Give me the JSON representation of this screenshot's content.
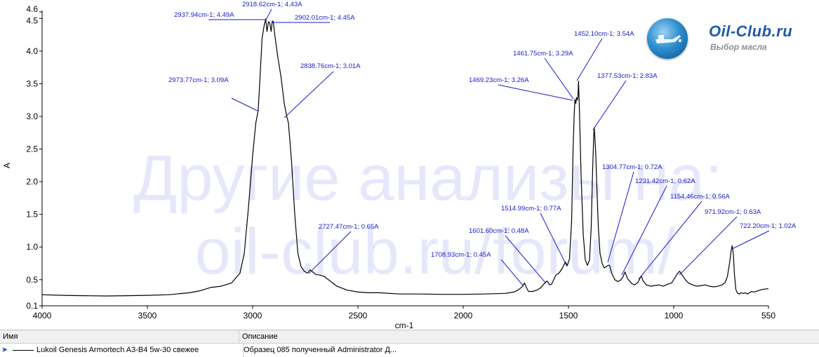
{
  "watermark": {
    "line1": "Другие анализы на:",
    "line2": "oil-club.ru/forum/"
  },
  "logo": {
    "name": "Oil-Club.ru",
    "subtitle": "Выбор масла",
    "icon": "oil-can-icon"
  },
  "legend_table": {
    "headers": {
      "name": "Имя",
      "description": "Описание"
    },
    "rows": [
      {
        "name": "Lukoil Genesis Armortech A3-B4 5w-30 свежее",
        "description": "Образец 085 полученный Administrator Д...",
        "icon": "selected-row-arrow-icon"
      }
    ]
  },
  "chart_data": {
    "type": "line",
    "xlabel": "cm-1",
    "ylabel": "A",
    "xlim": [
      4000,
      550
    ],
    "ylim": [
      0.1,
      4.6
    ],
    "x_reversed": true,
    "grid": false,
    "x_ticks": [
      {
        "value": 4000,
        "label": "4000"
      },
      {
        "value": 3500,
        "label": "3500"
      },
      {
        "value": 3000,
        "label": "3000"
      },
      {
        "value": 2500,
        "label": "2500"
      },
      {
        "value": 2000,
        "label": "2000"
      },
      {
        "value": 1500,
        "label": "1500"
      },
      {
        "value": 1000,
        "label": "1000"
      },
      {
        "value": 550,
        "label": "550"
      }
    ],
    "y_ticks": [
      {
        "value": 0.1,
        "label": "0.1"
      },
      {
        "value": 0.5,
        "label": "0.5"
      },
      {
        "value": 1.0,
        "label": "1.0"
      },
      {
        "value": 1.5,
        "label": "1.5"
      },
      {
        "value": 2.0,
        "label": "2.0"
      },
      {
        "value": 2.5,
        "label": "2.5"
      },
      {
        "value": 3.0,
        "label": "3.0"
      },
      {
        "value": 3.5,
        "label": "3.5"
      },
      {
        "value": 4.0,
        "label": "4.0"
      },
      {
        "value": 4.5,
        "label": "4.5"
      },
      {
        "value": 4.6,
        "label": "4.6"
      }
    ],
    "series": [
      {
        "color": "#000000",
        "points": [
          [
            4000,
            0.27
          ],
          [
            3900,
            0.26
          ],
          [
            3800,
            0.255
          ],
          [
            3700,
            0.25
          ],
          [
            3600,
            0.255
          ],
          [
            3500,
            0.26
          ],
          [
            3400,
            0.27
          ],
          [
            3300,
            0.3
          ],
          [
            3250,
            0.33
          ],
          [
            3200,
            0.38
          ],
          [
            3150,
            0.4
          ],
          [
            3100,
            0.45
          ],
          [
            3060,
            0.6
          ],
          [
            3040,
            0.9
          ],
          [
            3020,
            1.6
          ],
          [
            3000,
            2.4
          ],
          [
            2985,
            2.9
          ],
          [
            2973.77,
            3.09
          ],
          [
            2965,
            3.6
          ],
          [
            2955,
            4.2
          ],
          [
            2945,
            4.4
          ],
          [
            2937.94,
            4.49
          ],
          [
            2932,
            4.3
          ],
          [
            2925,
            4.45
          ],
          [
            2918.62,
            4.43
          ],
          [
            2912,
            4.3
          ],
          [
            2907,
            4.46
          ],
          [
            2902.01,
            4.45
          ],
          [
            2895,
            4.25
          ],
          [
            2880,
            3.9
          ],
          [
            2865,
            3.6
          ],
          [
            2850,
            3.2
          ],
          [
            2838.76,
            3.01
          ],
          [
            2830,
            2.9
          ],
          [
            2815,
            2.3
          ],
          [
            2800,
            1.5
          ],
          [
            2785,
            0.9
          ],
          [
            2770,
            0.7
          ],
          [
            2755,
            0.63
          ],
          [
            2740,
            0.6
          ],
          [
            2727.47,
            0.65
          ],
          [
            2715,
            0.62
          ],
          [
            2700,
            0.58
          ],
          [
            2680,
            0.57
          ],
          [
            2660,
            0.55
          ],
          [
            2640,
            0.5
          ],
          [
            2620,
            0.45
          ],
          [
            2600,
            0.4
          ],
          [
            2550,
            0.34
          ],
          [
            2500,
            0.31
          ],
          [
            2450,
            0.3
          ],
          [
            2400,
            0.3
          ],
          [
            2300,
            0.28
          ],
          [
            2200,
            0.28
          ],
          [
            2100,
            0.275
          ],
          [
            2000,
            0.275
          ],
          [
            1900,
            0.28
          ],
          [
            1800,
            0.29
          ],
          [
            1760,
            0.31
          ],
          [
            1740,
            0.34
          ],
          [
            1720,
            0.39
          ],
          [
            1708.93,
            0.45
          ],
          [
            1700,
            0.38
          ],
          [
            1690,
            0.32
          ],
          [
            1670,
            0.32
          ],
          [
            1650,
            0.34
          ],
          [
            1630,
            0.38
          ],
          [
            1615,
            0.44
          ],
          [
            1601.6,
            0.48
          ],
          [
            1590,
            0.42
          ],
          [
            1580,
            0.43
          ],
          [
            1570,
            0.5
          ],
          [
            1560,
            0.57
          ],
          [
            1545,
            0.6
          ],
          [
            1530,
            0.67
          ],
          [
            1514.99,
            0.77
          ],
          [
            1505,
            0.72
          ],
          [
            1495,
            0.82
          ],
          [
            1485,
            1.4
          ],
          [
            1478,
            2.5
          ],
          [
            1473,
            3.0
          ],
          [
            1469.23,
            3.26
          ],
          [
            1465,
            3.2
          ],
          [
            1461.75,
            3.29
          ],
          [
            1458,
            3.25
          ],
          [
            1455,
            3.3
          ],
          [
            1452.1,
            3.54
          ],
          [
            1448,
            3.1
          ],
          [
            1440,
            2.1
          ],
          [
            1430,
            1.2
          ],
          [
            1420,
            0.8
          ],
          [
            1410,
            0.72
          ],
          [
            1400,
            0.8
          ],
          [
            1392,
            1.3
          ],
          [
            1385,
            2.2
          ],
          [
            1380,
            2.7
          ],
          [
            1377.53,
            2.83
          ],
          [
            1374,
            2.65
          ],
          [
            1370,
            2.4
          ],
          [
            1365,
            1.9
          ],
          [
            1358,
            1.3
          ],
          [
            1350,
            0.9
          ],
          [
            1340,
            0.75
          ],
          [
            1330,
            0.68
          ],
          [
            1320,
            0.7
          ],
          [
            1312,
            0.72
          ],
          [
            1304.77,
            0.72
          ],
          [
            1295,
            0.6
          ],
          [
            1280,
            0.5
          ],
          [
            1265,
            0.47
          ],
          [
            1250,
            0.5
          ],
          [
            1240,
            0.55
          ],
          [
            1231.42,
            0.62
          ],
          [
            1220,
            0.52
          ],
          [
            1200,
            0.44
          ],
          [
            1185,
            0.42
          ],
          [
            1170,
            0.46
          ],
          [
            1160,
            0.52
          ],
          [
            1154.46,
            0.56
          ],
          [
            1145,
            0.48
          ],
          [
            1130,
            0.42
          ],
          [
            1110,
            0.4
          ],
          [
            1090,
            0.41
          ],
          [
            1070,
            0.42
          ],
          [
            1050,
            0.4
          ],
          [
            1030,
            0.43
          ],
          [
            1010,
            0.45
          ],
          [
            1000,
            0.5
          ],
          [
            985,
            0.58
          ],
          [
            971.92,
            0.63
          ],
          [
            960,
            0.57
          ],
          [
            945,
            0.5
          ],
          [
            930,
            0.45
          ],
          [
            910,
            0.42
          ],
          [
            890,
            0.4
          ],
          [
            870,
            0.41
          ],
          [
            850,
            0.42
          ],
          [
            830,
            0.4
          ],
          [
            810,
            0.39
          ],
          [
            790,
            0.4
          ],
          [
            770,
            0.42
          ],
          [
            755,
            0.46
          ],
          [
            745,
            0.55
          ],
          [
            735,
            0.75
          ],
          [
            727,
            0.95
          ],
          [
            722.2,
            1.02
          ],
          [
            717,
            0.9
          ],
          [
            712,
            0.6
          ],
          [
            705,
            0.35
          ],
          [
            698,
            0.3
          ],
          [
            690,
            0.28
          ],
          [
            680,
            0.3
          ],
          [
            670,
            0.29
          ],
          [
            660,
            0.3
          ],
          [
            650,
            0.28
          ],
          [
            640,
            0.3
          ],
          [
            630,
            0.32
          ],
          [
            620,
            0.31
          ],
          [
            600,
            0.33
          ],
          [
            580,
            0.35
          ],
          [
            560,
            0.36
          ],
          [
            550,
            0.36
          ]
        ]
      }
    ],
    "annotations": [
      {
        "x": 2937.94,
        "y": 4.49,
        "label": "2937.94cm-1; 4.49A",
        "side": "left"
      },
      {
        "x": 2918.62,
        "y": 4.43,
        "label": "2918.62cm-1; 4.43A",
        "side": "up"
      },
      {
        "x": 2902.01,
        "y": 4.45,
        "label": "2902.01cm-1; 4.45A",
        "side": "right"
      },
      {
        "x": 2973.77,
        "y": 3.09,
        "label": "2973.77cm-1; 3.09A",
        "side": "left"
      },
      {
        "x": 2838.76,
        "y": 3.01,
        "label": "2838.76cm-1; 3.01A",
        "side": "right"
      },
      {
        "x": 2727.47,
        "y": 0.65,
        "label": "2727.47cm-1; 0.65A",
        "side": "right"
      },
      {
        "x": 1708.93,
        "y": 0.45,
        "label": "1708.93cm-1; 0.45A",
        "side": "left"
      },
      {
        "x": 1601.6,
        "y": 0.48,
        "label": "1601.60cm-1; 0.48A",
        "side": "left"
      },
      {
        "x": 1514.99,
        "y": 0.77,
        "label": "1514.99cm-1; 0.77A",
        "side": "left"
      },
      {
        "x": 1469.23,
        "y": 3.26,
        "label": "1469.23cm-1; 3.26A",
        "side": "left"
      },
      {
        "x": 1461.75,
        "y": 3.29,
        "label": "1461.75cm-1; 3.29A",
        "side": "left"
      },
      {
        "x": 1452.1,
        "y": 3.54,
        "label": "1452.10cm-1; 3.54A",
        "side": "up"
      },
      {
        "x": 1377.53,
        "y": 2.83,
        "label": "1377.53cm-1; 2.83A",
        "side": "right"
      },
      {
        "x": 1304.77,
        "y": 0.72,
        "label": "1304.77cm-1; 0.72A",
        "side": "right"
      },
      {
        "x": 1231.42,
        "y": 0.62,
        "label": "1231.42cm-1; 0.62A",
        "side": "right"
      },
      {
        "x": 1154.46,
        "y": 0.56,
        "label": "1154.46cm-1; 0.56A",
        "side": "right"
      },
      {
        "x": 971.92,
        "y": 0.63,
        "label": "971.92cm-1; 0.63A",
        "side": "right"
      },
      {
        "x": 722.2,
        "y": 1.02,
        "label": "722.20cm-1; 1.02A",
        "side": "right"
      }
    ],
    "colors": {
      "line": "#000000",
      "annotation": "#1a1acc",
      "watermark": "#e6e8fa"
    }
  }
}
